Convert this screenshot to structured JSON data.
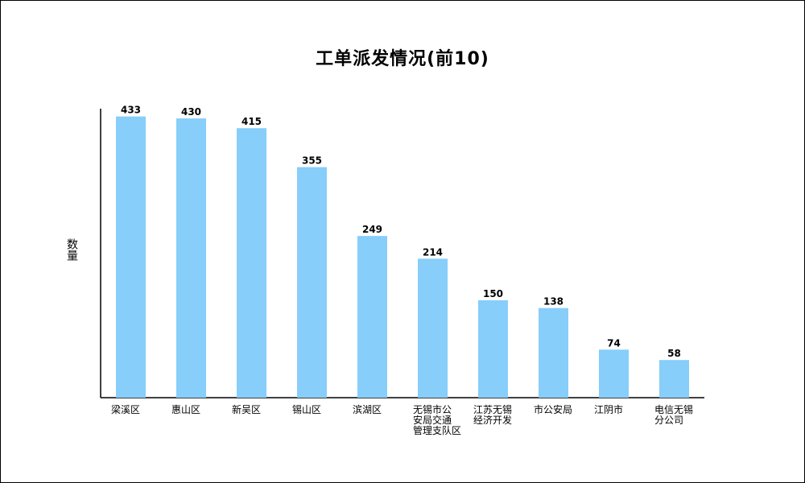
{
  "chart_data": {
    "type": "bar",
    "title": "工单派发情况(前10)",
    "ylabel": "数量",
    "xlabel": "",
    "ylim": [
      0,
      445
    ],
    "grid": false,
    "legend": "none",
    "bar_color": "#87CEFA",
    "categories": [
      [
        "梁溪区"
      ],
      [
        "惠山区"
      ],
      [
        "新吴区"
      ],
      [
        "锡山区"
      ],
      [
        "滨湖区"
      ],
      [
        "无锡市公",
        "安局交通",
        "管理支队区"
      ],
      [
        "江苏无锡",
        "经济开发"
      ],
      [
        "市公安局"
      ],
      [
        "江阴市"
      ],
      [
        "电信无锡",
        "分公司"
      ]
    ],
    "values": [
      433,
      430,
      415,
      355,
      249,
      214,
      150,
      138,
      74,
      58
    ]
  }
}
